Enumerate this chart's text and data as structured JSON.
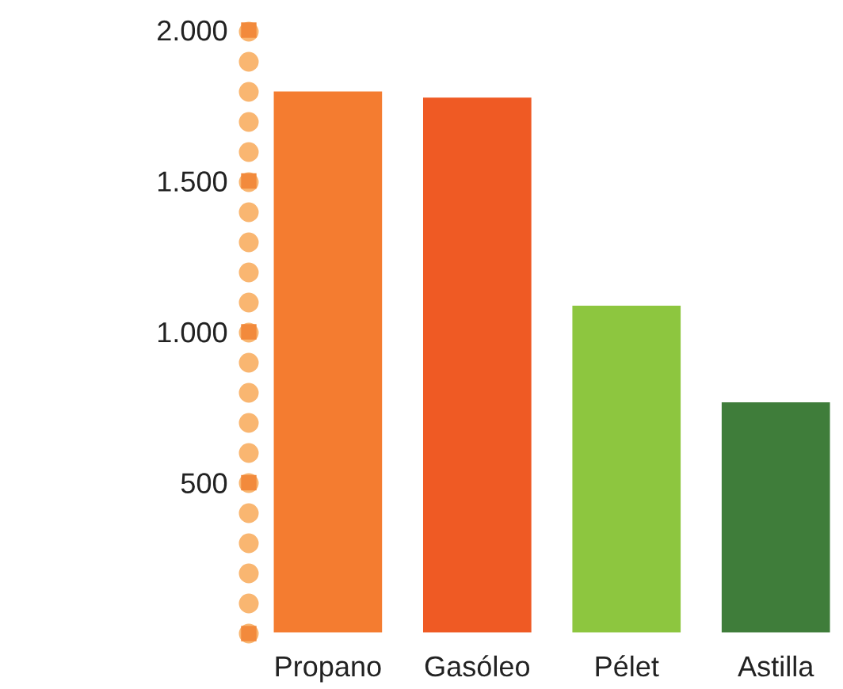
{
  "chart_data": {
    "type": "bar",
    "categories": [
      "Propano",
      "Gasóleo",
      "Pélet",
      "Astilla"
    ],
    "values": [
      1800,
      1780,
      1090,
      770
    ],
    "colors": [
      "#f47c30",
      "#ef5a24",
      "#8dc63f",
      "#3f7d3a"
    ],
    "ylim": [
      0,
      2000
    ],
    "yticks": [
      {
        "value": 0,
        "label": null
      },
      {
        "value": 500,
        "label": "500"
      },
      {
        "value": 1000,
        "label": "1.000"
      },
      {
        "value": 1500,
        "label": "1.500"
      },
      {
        "value": 2000,
        "label": "2.000"
      }
    ],
    "grid": false,
    "legend": false
  }
}
